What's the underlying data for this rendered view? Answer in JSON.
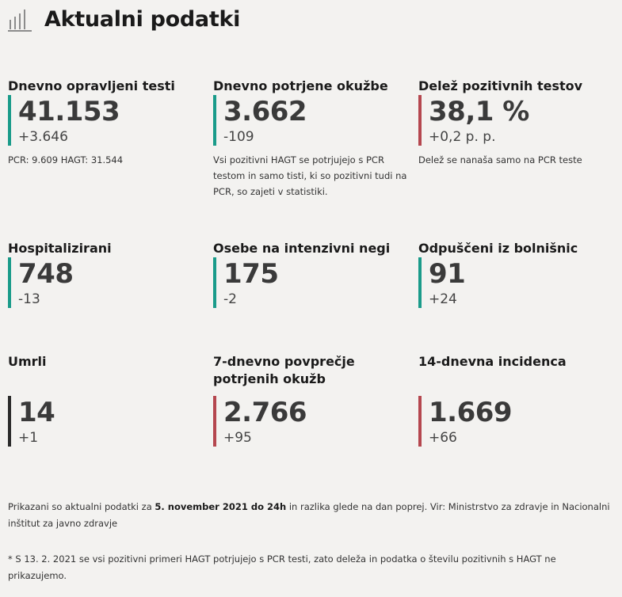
{
  "header": {
    "title": "Aktualni podatki",
    "icon": "bar-chart-icon"
  },
  "colors": {
    "green": "#1a9b8a",
    "red": "#b5474f",
    "dark": "#2b2b2b"
  },
  "cards": [
    {
      "label": "Dnevno opravljeni testi",
      "value": "41.153",
      "delta": "+3.646",
      "note": "PCR: 9.609 HAGT: 31.544",
      "accent": "green"
    },
    {
      "label": "Dnevno potrjene okužbe",
      "value": "3.662",
      "delta": "-109",
      "note": "Vsi pozitivni HAGT se potrjujejo s PCR testom in samo tisti, ki so pozitivni tudi na PCR, so zajeti v statistiki.",
      "accent": "green"
    },
    {
      "label": "Delež pozitivnih testov",
      "value": "38,1 %",
      "delta": "+0,2 p. p.",
      "note": "Delež se nanaša samo na PCR teste",
      "accent": "red"
    },
    {
      "label": "Hospitalizirani",
      "value": "748",
      "delta": "-13",
      "accent": "green"
    },
    {
      "label": "Osebe na intenzivni negi",
      "value": "175",
      "delta": "-2",
      "accent": "green"
    },
    {
      "label": "Odpuščeni iz bolnišnic",
      "value": "91",
      "delta": "+24",
      "accent": "green"
    },
    {
      "label": "Umrli",
      "value": "14",
      "delta": "+1",
      "accent": "dark"
    },
    {
      "label": "7-dnevno povprečje potrjenih okužb",
      "value": "2.766",
      "delta": "+95",
      "accent": "red"
    },
    {
      "label": "14-dnevna incidenca",
      "value": "1.669",
      "delta": "+66",
      "accent": "red"
    }
  ],
  "footer": {
    "line1_pre": "Prikazani so aktualni podatki za ",
    "line1_bold": "5. november 2021 do 24h",
    "line1_post": " in razlika glede na dan poprej. Vir: Ministrstvo za zdravje in Nacionalni inštitut za javno zdravje",
    "line2": "* S 13. 2. 2021 se vsi pozitivni primeri HAGT potrjujejo s PCR testi, zato deleža in podatka o številu pozitivnih s HAGT ne prikazujemo."
  }
}
